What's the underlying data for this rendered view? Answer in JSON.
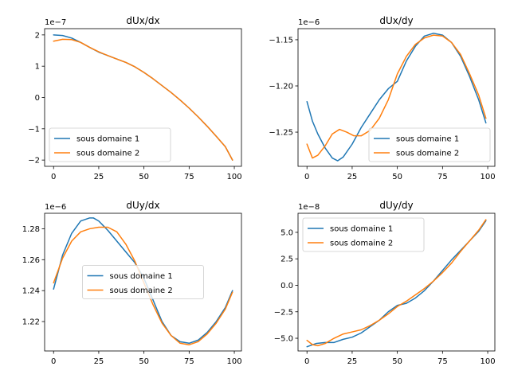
{
  "figure": {
    "colors": {
      "series1": "#1f77b4",
      "series2": "#ff7f0e"
    }
  },
  "chart_data": [
    {
      "type": "line",
      "title": "dUx/dx",
      "xlabel": "",
      "ylabel": "",
      "y_offset_label": "1e−7",
      "y_scale": 1e-07,
      "xlim": [
        -4.95,
        103.95
      ],
      "ylim": [
        -2.2,
        2.2
      ],
      "xticks": [
        0,
        25,
        50,
        75,
        100
      ],
      "yticks": [
        -2,
        -1,
        0,
        1,
        2
      ],
      "ytick_labels": [
        "−2",
        "−1",
        "0",
        "1",
        "2"
      ],
      "legend_position": "lower-left",
      "series": [
        {
          "name": "sous domaine 1",
          "color": "#1f77b4",
          "x": [
            0,
            5,
            10,
            15,
            20,
            25,
            30,
            35,
            40,
            45,
            50,
            55,
            60,
            65,
            70,
            75,
            80,
            85,
            90,
            95,
            99
          ],
          "y": [
            2.0,
            1.98,
            1.9,
            1.76,
            1.6,
            1.45,
            1.34,
            1.23,
            1.12,
            0.98,
            0.8,
            0.6,
            0.38,
            0.16,
            -0.08,
            -0.34,
            -0.62,
            -0.92,
            -1.24,
            -1.57,
            -2.0
          ]
        },
        {
          "name": "sous domaine 2",
          "color": "#ff7f0e",
          "x": [
            0,
            5,
            10,
            15,
            20,
            25,
            30,
            35,
            40,
            45,
            50,
            55,
            60,
            65,
            70,
            75,
            80,
            85,
            90,
            95,
            99
          ],
          "y": [
            1.8,
            1.86,
            1.85,
            1.76,
            1.6,
            1.46,
            1.34,
            1.23,
            1.12,
            0.98,
            0.8,
            0.6,
            0.38,
            0.16,
            -0.08,
            -0.34,
            -0.62,
            -0.92,
            -1.24,
            -1.57,
            -2.0
          ]
        }
      ]
    },
    {
      "type": "line",
      "title": "dUx/dy",
      "xlabel": "",
      "ylabel": "",
      "y_offset_label": "1e−6",
      "y_scale": 1e-06,
      "xlim": [
        -4.95,
        103.95
      ],
      "ylim": [
        -1.287,
        -1.138
      ],
      "xticks": [
        0,
        25,
        50,
        75,
        100
      ],
      "yticks": [
        -1.25,
        -1.2,
        -1.15
      ],
      "ytick_labels": [
        "−1.25",
        "−1.20",
        "−1.15"
      ],
      "legend_position": "lower-right",
      "series": [
        {
          "name": "sous domaine 1",
          "color": "#1f77b4",
          "x": [
            0,
            3,
            6,
            10,
            14,
            17,
            20,
            25,
            30,
            35,
            40,
            45,
            50,
            55,
            60,
            65,
            70,
            75,
            80,
            85,
            90,
            95,
            99
          ],
          "y": [
            -1.217,
            -1.238,
            -1.252,
            -1.267,
            -1.278,
            -1.281,
            -1.277,
            -1.263,
            -1.245,
            -1.23,
            -1.215,
            -1.203,
            -1.195,
            -1.173,
            -1.157,
            -1.146,
            -1.143,
            -1.145,
            -1.153,
            -1.168,
            -1.19,
            -1.215,
            -1.24
          ]
        },
        {
          "name": "sous domaine 2",
          "color": "#ff7f0e",
          "x": [
            0,
            3,
            6,
            10,
            14,
            18,
            22,
            26,
            30,
            35,
            40,
            45,
            50,
            55,
            60,
            65,
            70,
            75,
            80,
            85,
            90,
            95,
            99
          ],
          "y": [
            -1.263,
            -1.278,
            -1.275,
            -1.265,
            -1.252,
            -1.247,
            -1.25,
            -1.254,
            -1.254,
            -1.248,
            -1.235,
            -1.215,
            -1.187,
            -1.168,
            -1.155,
            -1.148,
            -1.145,
            -1.146,
            -1.153,
            -1.166,
            -1.187,
            -1.21,
            -1.235
          ]
        }
      ]
    },
    {
      "type": "line",
      "title": "dUy/dx",
      "xlabel": "",
      "ylabel": "",
      "y_offset_label": "1e−6",
      "y_scale": 1e-06,
      "xlim": [
        -4.95,
        103.95
      ],
      "ylim": [
        1.201,
        1.29
      ],
      "xticks": [
        0,
        25,
        50,
        75,
        100
      ],
      "yticks": [
        1.22,
        1.24,
        1.26,
        1.28
      ],
      "ytick_labels": [
        "1.22",
        "1.24",
        "1.26",
        "1.28"
      ],
      "legend_position": "center",
      "series": [
        {
          "name": "sous domaine 1",
          "color": "#1f77b4",
          "x": [
            0,
            5,
            10,
            15,
            20,
            22,
            25,
            30,
            35,
            40,
            45,
            50,
            55,
            60,
            65,
            70,
            75,
            80,
            85,
            90,
            95,
            99
          ],
          "y": [
            1.241,
            1.263,
            1.277,
            1.285,
            1.287,
            1.287,
            1.285,
            1.279,
            1.272,
            1.265,
            1.258,
            1.248,
            1.234,
            1.22,
            1.211,
            1.207,
            1.206,
            1.208,
            1.213,
            1.22,
            1.229,
            1.24
          ]
        },
        {
          "name": "sous domaine 2",
          "color": "#ff7f0e",
          "x": [
            0,
            5,
            10,
            15,
            20,
            25,
            30,
            35,
            40,
            45,
            50,
            55,
            60,
            65,
            70,
            75,
            80,
            85,
            90,
            95,
            99
          ],
          "y": [
            1.245,
            1.261,
            1.272,
            1.278,
            1.28,
            1.281,
            1.281,
            1.278,
            1.27,
            1.259,
            1.245,
            1.231,
            1.219,
            1.211,
            1.206,
            1.205,
            1.207,
            1.212,
            1.219,
            1.228,
            1.239
          ]
        }
      ]
    },
    {
      "type": "line",
      "title": "dUy/dy",
      "xlabel": "",
      "ylabel": "",
      "y_offset_label": "1e−8",
      "y_scale": 1e-08,
      "xlim": [
        -4.95,
        103.95
      ],
      "ylim": [
        -6.2,
        6.8
      ],
      "xticks": [
        0,
        25,
        50,
        75,
        100
      ],
      "yticks": [
        -5,
        -2.5,
        0,
        2.5,
        5
      ],
      "ytick_labels": [
        "−5.0",
        "−2.5",
        "0.0",
        "2.5",
        "5.0"
      ],
      "legend_position": "top-left",
      "series": [
        {
          "name": "sous domaine 1",
          "color": "#1f77b4",
          "x": [
            0,
            5,
            10,
            15,
            20,
            25,
            30,
            35,
            40,
            45,
            50,
            55,
            60,
            65,
            70,
            75,
            80,
            85,
            90,
            95,
            99
          ],
          "y": [
            -5.8,
            -5.5,
            -5.4,
            -5.4,
            -5.1,
            -4.9,
            -4.5,
            -3.9,
            -3.3,
            -2.5,
            -1.9,
            -1.7,
            -1.2,
            -0.5,
            0.4,
            1.4,
            2.4,
            3.3,
            4.2,
            5.1,
            6.1
          ]
        },
        {
          "name": "sous domaine 2",
          "color": "#ff7f0e",
          "x": [
            0,
            3,
            6,
            10,
            15,
            20,
            25,
            30,
            35,
            40,
            45,
            50,
            55,
            60,
            65,
            70,
            75,
            80,
            85,
            90,
            95,
            99
          ],
          "y": [
            -5.2,
            -5.6,
            -5.7,
            -5.5,
            -5.0,
            -4.6,
            -4.4,
            -4.2,
            -3.8,
            -3.3,
            -2.7,
            -2.0,
            -1.5,
            -0.9,
            -0.3,
            0.4,
            1.2,
            2.1,
            3.2,
            4.2,
            5.2,
            6.2
          ]
        }
      ]
    }
  ]
}
